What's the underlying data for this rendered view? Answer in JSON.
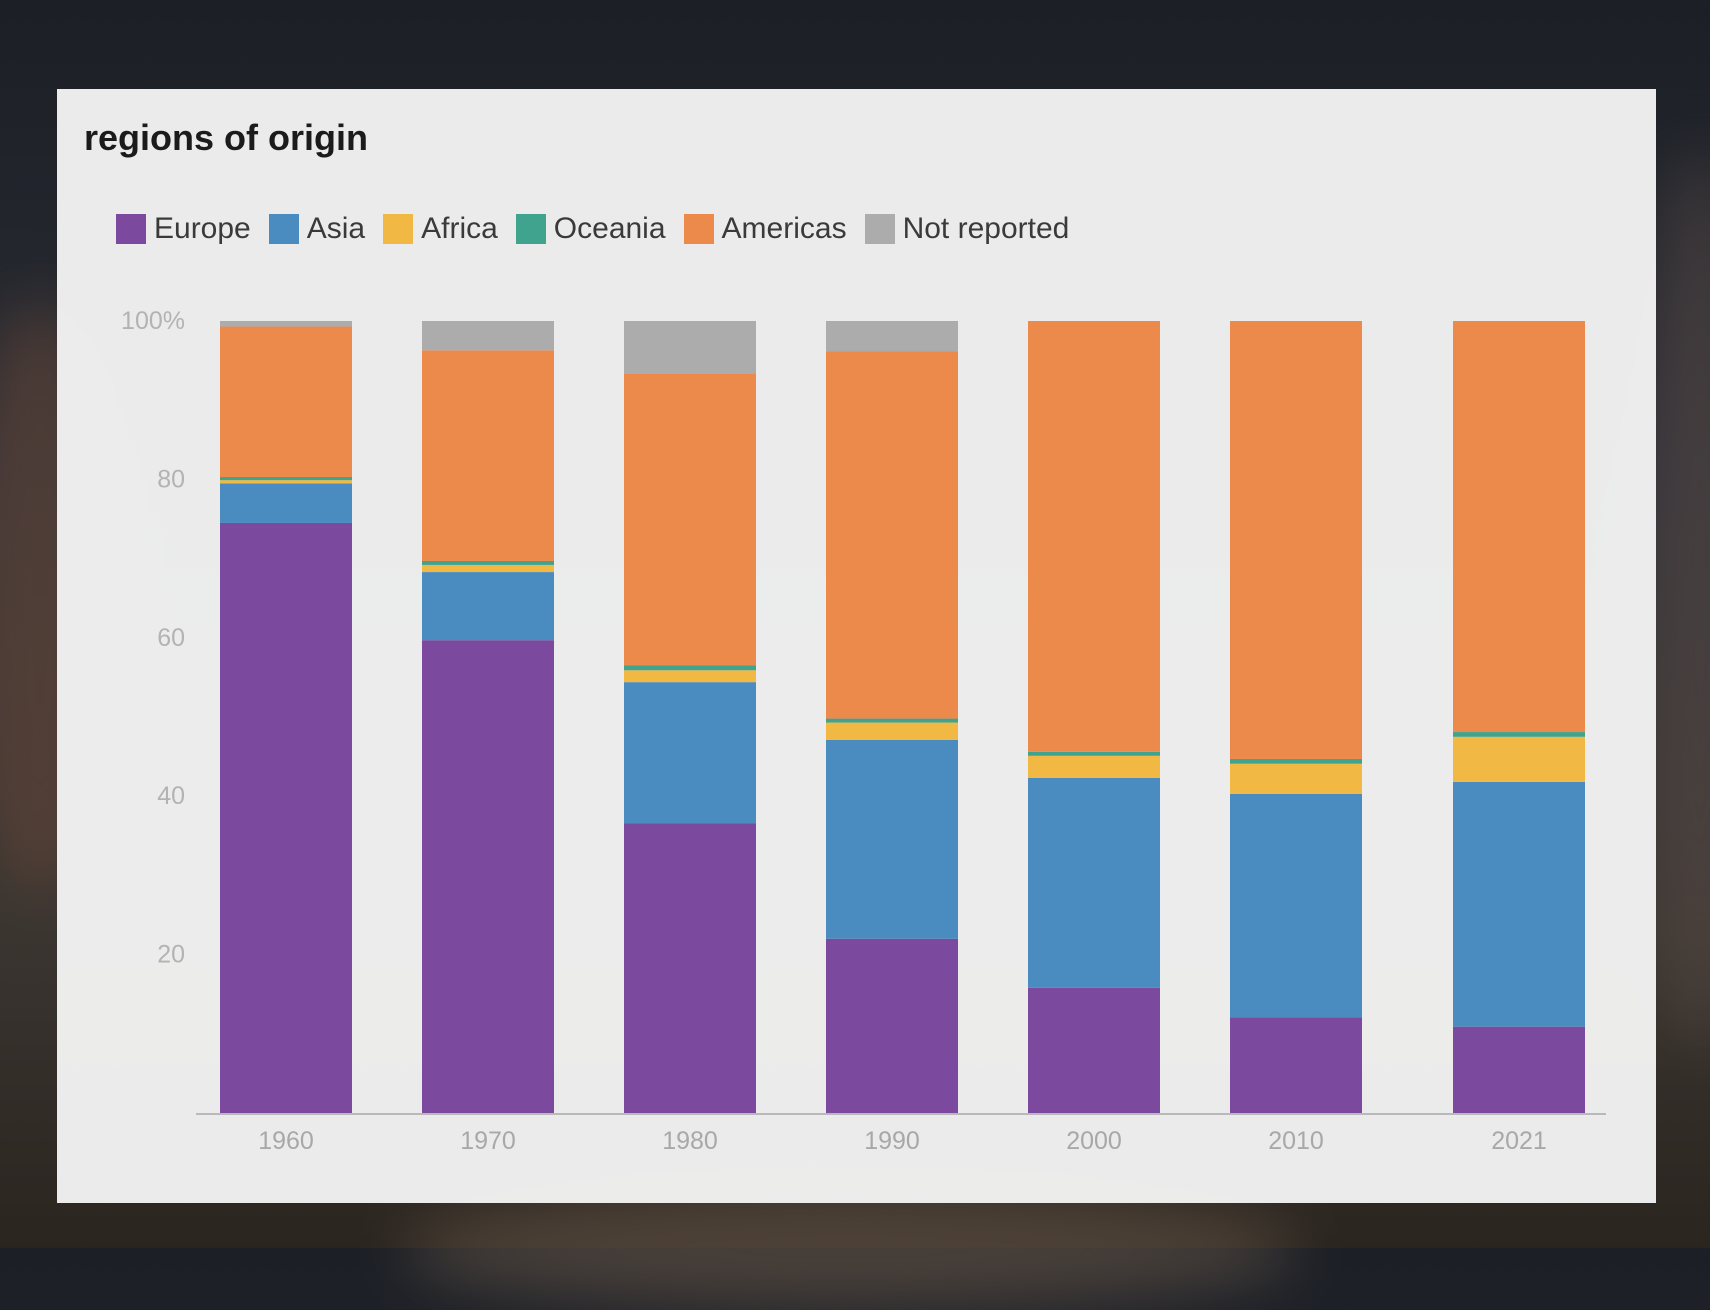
{
  "chart_data": {
    "type": "bar",
    "stacked": true,
    "title": "regions of origin",
    "xlabel": "",
    "ylabel": "",
    "ylim": [
      0,
      100
    ],
    "yticks": [
      {
        "value": 100,
        "label": "100%"
      },
      {
        "value": 80,
        "label": "80"
      },
      {
        "value": 60,
        "label": "60"
      },
      {
        "value": 40,
        "label": "40"
      },
      {
        "value": 20,
        "label": "20"
      }
    ],
    "categories": [
      "1960",
      "1970",
      "1980",
      "1990",
      "2000",
      "2010",
      "2021"
    ],
    "series": [
      {
        "name": "Europe",
        "color": "#7b4a9e",
        "values": [
          74.5,
          59.7,
          36.6,
          22.0,
          15.8,
          12.1,
          10.9
        ]
      },
      {
        "name": "Asia",
        "color": "#4a8cc0",
        "values": [
          5.0,
          8.6,
          17.8,
          25.1,
          26.5,
          28.2,
          30.9
        ]
      },
      {
        "name": "Africa",
        "color": "#f1b944",
        "values": [
          0.4,
          0.9,
          1.5,
          2.2,
          2.8,
          3.8,
          5.7
        ]
      },
      {
        "name": "Oceania",
        "color": "#3fa38e",
        "values": [
          0.4,
          0.5,
          0.6,
          0.5,
          0.5,
          0.6,
          0.6
        ]
      },
      {
        "name": "Americas",
        "color": "#ec8a4b",
        "values": [
          19.0,
          26.6,
          36.9,
          46.4,
          54.4,
          55.3,
          51.9
        ]
      },
      {
        "name": "Not reported",
        "color": "#acacac",
        "values": [
          0.7,
          3.7,
          6.6,
          3.8,
          0.0,
          0.0,
          0.0
        ]
      }
    ]
  }
}
